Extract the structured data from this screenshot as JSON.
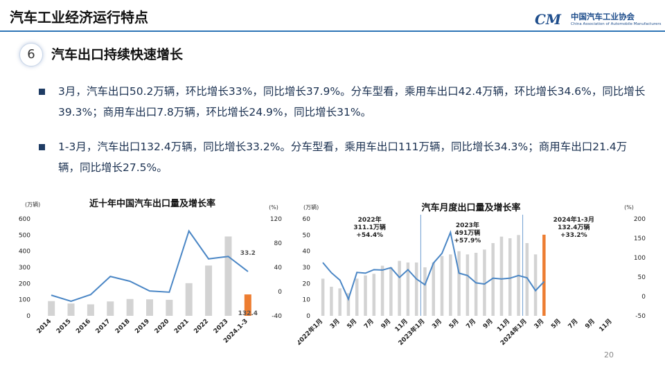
{
  "header": {
    "title": "汽车工业经济运行特点",
    "logo_mark": "CM",
    "logo_cn": "中国汽车工业协会",
    "logo_en": "China Association of Automobile Manufacturers"
  },
  "section": {
    "number": "6",
    "title": "汽车出口持续快速增长"
  },
  "bullets": [
    "3月，汽车出口50.2万辆，环比增长33%，同比增长37.9%。分车型看，乘用车出口42.4万辆，环比增长34.6%，同比增长39.3%；商用车出口7.8万辆，环比增长24.9%，同比增长31%。",
    "1-3月，汽车出口132.4万辆，同比增长33.2%。分车型看，乘用车出口111万辆，同比增长34.3%；商用车出口21.4万辆，同比增长27.5%。"
  ],
  "page_number": "20",
  "colors": {
    "bar": "#d3d3d3",
    "highlight_bar": "#ed7d31",
    "line": "#4a86c5",
    "accent": "#2e75b6"
  },
  "chart_data": [
    {
      "type": "bar",
      "title": "近十年中国汽车出口量及增长率",
      "y_left_unit": "(万辆)",
      "y_right_unit": "(%)",
      "ylim_left": [
        0,
        600
      ],
      "ylim_right": [
        -40,
        120
      ],
      "left_ticks": [
        "0",
        "100",
        "200",
        "300",
        "400",
        "500",
        "600"
      ],
      "right_ticks": [
        "-40",
        "0",
        "40",
        "80",
        "120"
      ],
      "categories": [
        "2014",
        "2015",
        "2016",
        "2017",
        "2018",
        "2019",
        "2020",
        "2021",
        "2022",
        "2023",
        "2024.1-3"
      ],
      "series": [
        {
          "values": [
            91,
            76,
            71,
            89,
            104,
            102,
            99,
            202,
            311,
            491,
            132.4
          ],
          "kind": "bar",
          "axis": "left"
        },
        {
          "values": [
            -6,
            -16,
            -5,
            25,
            17,
            1,
            -1,
            100,
            54,
            58,
            33.2
          ],
          "kind": "line",
          "axis": "right"
        }
      ],
      "annotations": [
        {
          "text": "33.2",
          "series": 1,
          "index": 10
        },
        {
          "text": "132.4",
          "series": 0,
          "index": 10
        }
      ],
      "grid": false
    },
    {
      "type": "bar",
      "title": "汽车月度出口量及增长率",
      "y_left_unit": "(万辆)",
      "y_right_unit": "(%)",
      "ylim_left": [
        0,
        60
      ],
      "ylim_right": [
        -50,
        200
      ],
      "left_ticks": [
        "0",
        "10",
        "20",
        "30",
        "40",
        "50",
        "60"
      ],
      "right_ticks": [
        "-50",
        "0",
        "50",
        "100",
        "150",
        "200"
      ],
      "categories": [
        "2022年1月",
        "2月",
        "3月",
        "4月",
        "5月",
        "6月",
        "7月",
        "8月",
        "9月",
        "10月",
        "11月",
        "12月",
        "2023年1月",
        "2月",
        "3月",
        "4月",
        "5月",
        "6月",
        "7月",
        "8月",
        "9月",
        "10月",
        "11月",
        "12月",
        "2024年1月",
        "2月",
        "3月",
        "4月",
        "5月",
        "6月",
        "7月",
        "8月",
        "9月",
        "10月",
        "11月",
        "12月"
      ],
      "x_tick_labels": [
        "2022年1月",
        "3月",
        "5月",
        "7月",
        "9月",
        "11月",
        "2023年1月",
        "3月",
        "5月",
        "7月",
        "9月",
        "11月",
        "2024年1月",
        "3月",
        "5月",
        "7月",
        "9月",
        "11月"
      ],
      "series": [
        {
          "values": [
            23,
            18,
            17,
            14,
            23,
            25,
            26,
            31,
            30,
            34,
            33,
            33,
            30,
            33,
            37,
            38,
            40,
            38,
            39,
            41,
            45,
            49,
            48,
            50,
            45,
            38,
            50.2,
            null,
            null,
            null,
            null,
            null,
            null,
            null,
            null,
            null
          ],
          "kind": "bar",
          "axis": "left"
        },
        {
          "values": [
            87,
            61,
            42,
            -7,
            62,
            60,
            69,
            68,
            74,
            49,
            69,
            45,
            30,
            86,
            111,
            165,
            60,
            54,
            35,
            32,
            47,
            45,
            47,
            54,
            48,
            15,
            38,
            null,
            null,
            null,
            null,
            null,
            null,
            null,
            null,
            null
          ],
          "kind": "line",
          "axis": "right"
        }
      ],
      "highlight_index": 26,
      "annotations": [
        {
          "text": "2022年\n311.1万辆\n+54.4%"
        },
        {
          "text": "2023年\n491万辆\n+57.9%"
        },
        {
          "text": "2024年1-3月\n132.4万辆\n+33.2%"
        }
      ],
      "grid": false
    }
  ]
}
